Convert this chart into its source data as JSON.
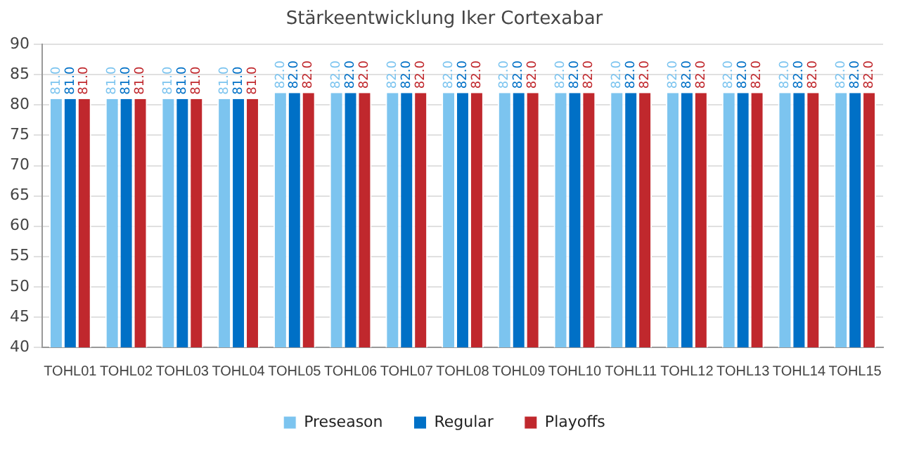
{
  "chart_data": {
    "type": "bar",
    "title": "Stärkeentwicklung Iker Cortexabar",
    "categories": [
      "TOHL01",
      "TOHL02",
      "TOHL03",
      "TOHL04",
      "TOHL05",
      "TOHL06",
      "TOHL07",
      "TOHL08",
      "TOHL09",
      "TOHL10",
      "TOHL11",
      "TOHL12",
      "TOHL13",
      "TOHL14",
      "TOHL15"
    ],
    "series": [
      {
        "name": "Preseason",
        "color": "#7cc4ef",
        "values": [
          81,
          81,
          81,
          81,
          82,
          82,
          82,
          82,
          82,
          82,
          82,
          82,
          82,
          82,
          82
        ],
        "value_labels": [
          "81.0",
          "81.0",
          "81.0",
          "81.0",
          "82.0",
          "82.0",
          "82.0",
          "82.0",
          "82.0",
          "82.0",
          "82.0",
          "82.0",
          "82.0",
          "82.0",
          "82.0"
        ]
      },
      {
        "name": "Regular",
        "color": "#0070c6",
        "values": [
          81,
          81,
          81,
          81,
          82,
          82,
          82,
          82,
          82,
          82,
          82,
          82,
          82,
          82,
          82
        ],
        "value_labels": [
          "81.0",
          "81.0",
          "81.0",
          "81.0",
          "82.0",
          "82.0",
          "82.0",
          "82.0",
          "82.0",
          "82.0",
          "82.0",
          "82.0",
          "82.0",
          "82.0",
          "82.0"
        ]
      },
      {
        "name": "Playoffs",
        "color": "#c0282d",
        "values": [
          81,
          81,
          81,
          81,
          82,
          82,
          82,
          82,
          82,
          82,
          82,
          82,
          82,
          82,
          82
        ],
        "value_labels": [
          "81.0",
          "81.0",
          "81.0",
          "81.0",
          "82.0",
          "82.0",
          "82.0",
          "82.0",
          "82.0",
          "82.0",
          "82.0",
          "82.0",
          "82.0",
          "82.0",
          "82.0"
        ]
      }
    ],
    "ylim": [
      40,
      90
    ],
    "yticks": [
      40,
      45,
      50,
      55,
      60,
      65,
      70,
      75,
      80,
      85,
      90
    ],
    "grid": "y",
    "legend": "bottom"
  }
}
